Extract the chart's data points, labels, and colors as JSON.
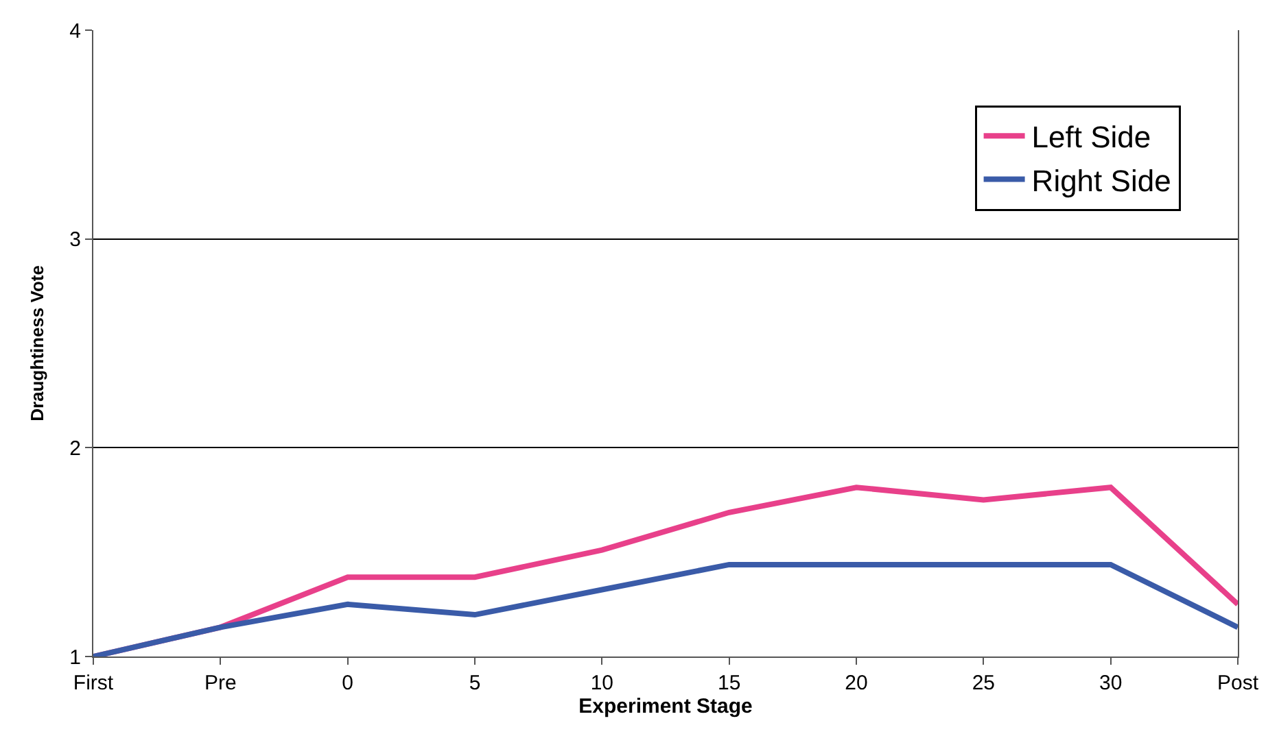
{
  "chart_data": {
    "type": "line",
    "xlabel": "Experiment Stage",
    "ylabel": "Draughtiness Vote",
    "categories": [
      "First",
      "Pre",
      "0",
      "5",
      "10",
      "15",
      "20",
      "25",
      "30",
      "Post"
    ],
    "series": [
      {
        "name": "Left Side",
        "color": "#e8408a",
        "values": [
          1,
          1.14,
          1.38,
          1.38,
          1.51,
          1.69,
          1.81,
          1.75,
          1.81,
          1.25
        ]
      },
      {
        "name": "Right Side",
        "color": "#3a5ba8",
        "values": [
          1,
          1.14,
          1.25,
          1.2,
          1.32,
          1.44,
          1.44,
          1.44,
          1.44,
          1.14
        ]
      }
    ],
    "ylim": [
      1,
      4
    ],
    "yticks": [
      1,
      2,
      3,
      4
    ],
    "grid": "y",
    "legend": "top right",
    "marker": "none",
    "line_style": "solid"
  }
}
